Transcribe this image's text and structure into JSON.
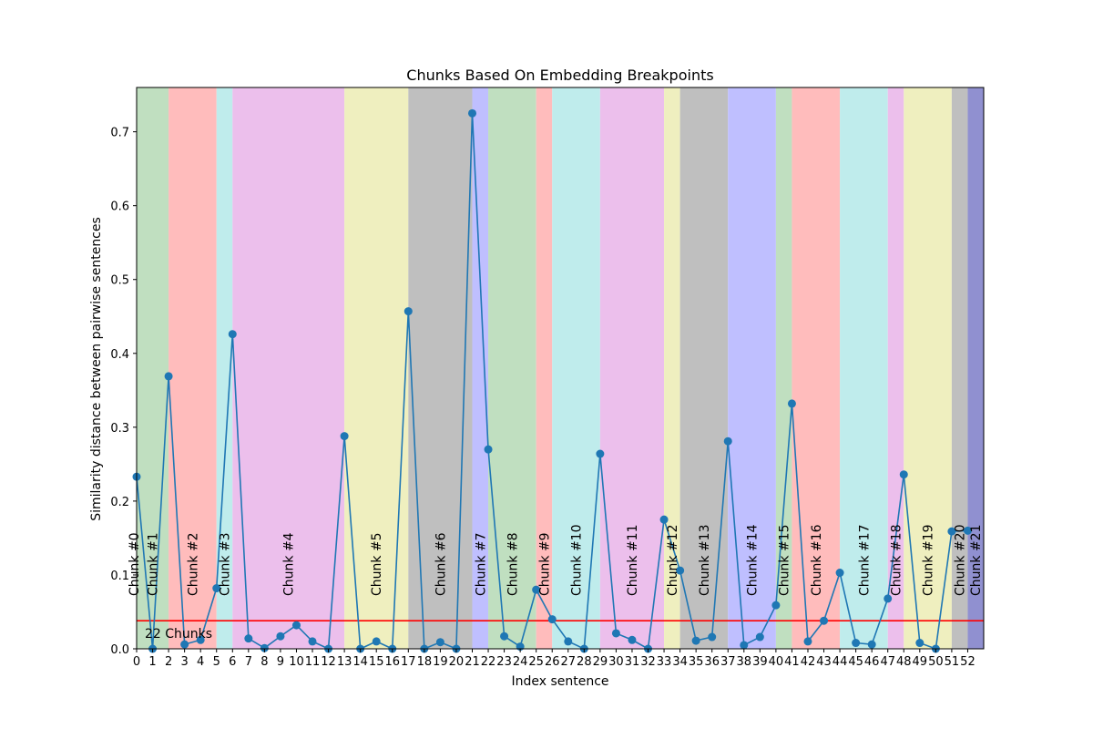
{
  "chart_data": {
    "type": "line",
    "title": "Chunks Based On Embedding Breakpoints",
    "xlabel": "Index sentence",
    "ylabel": "Similarity distance between pairwise sentences",
    "xlim": [
      0,
      53
    ],
    "ylim": [
      0,
      0.76
    ],
    "yticks": [
      0.0,
      0.1,
      0.2,
      0.3,
      0.4,
      0.5,
      0.6,
      0.7
    ],
    "grid": false,
    "x": [
      0,
      1,
      2,
      3,
      4,
      5,
      6,
      7,
      8,
      9,
      10,
      11,
      12,
      13,
      14,
      15,
      16,
      17,
      18,
      19,
      20,
      21,
      22,
      23,
      24,
      25,
      26,
      27,
      28,
      29,
      30,
      31,
      32,
      33,
      34,
      35,
      36,
      37,
      38,
      39,
      40,
      41,
      42,
      43,
      44,
      45,
      46,
      47,
      48,
      49,
      50,
      51,
      52
    ],
    "series": [
      {
        "color": "#1f77b4",
        "values": [
          0.233,
          0.0,
          0.369,
          0.006,
          0.012,
          0.082,
          0.426,
          0.014,
          0.001,
          0.017,
          0.032,
          0.01,
          0.0,
          0.288,
          0.0,
          0.01,
          0.0,
          0.457,
          0.0,
          0.009,
          0.0,
          0.725,
          0.27,
          0.017,
          0.003,
          0.08,
          0.04,
          0.01,
          0.0,
          0.264,
          0.021,
          0.012,
          0.0,
          0.175,
          0.106,
          0.011,
          0.016,
          0.281,
          0.005,
          0.016,
          0.059,
          0.332,
          0.01,
          0.038,
          0.103,
          0.008,
          0.006,
          0.068,
          0.236,
          0.008,
          0.0,
          0.159,
          0.16
        ]
      }
    ],
    "threshold": {
      "value": 0.038,
      "color": "#ff0000"
    },
    "annotation": "22 Chunks",
    "chunks": [
      {
        "label": "Chunk #0",
        "start": 0,
        "end": 2,
        "color": "#c0dfc0"
      },
      {
        "label": "Chunk #1",
        "start": 0,
        "end": 2,
        "color": "#c0dfc0"
      },
      {
        "label": "Chunk #2",
        "start": 2,
        "end": 5,
        "color": "#ffbcbc"
      },
      {
        "label": "Chunk #3",
        "start": 5,
        "end": 6,
        "color": "#bfecec"
      },
      {
        "label": "Chunk #4",
        "start": 6,
        "end": 13,
        "color": "#ecbfec"
      },
      {
        "label": "Chunk #5",
        "start": 13,
        "end": 17,
        "color": "#efefbf"
      },
      {
        "label": "Chunk #6",
        "start": 17,
        "end": 21,
        "color": "#bfbfbf"
      },
      {
        "label": "Chunk #7",
        "start": 21,
        "end": 22,
        "color": "#bfbfff"
      },
      {
        "label": "Chunk #8",
        "start": 22,
        "end": 25,
        "color": "#c0dfc0"
      },
      {
        "label": "Chunk #9",
        "start": 25,
        "end": 26,
        "color": "#ffbcbc"
      },
      {
        "label": "Chunk #10",
        "start": 26,
        "end": 29,
        "color": "#bfecec"
      },
      {
        "label": "Chunk #11",
        "start": 29,
        "end": 33,
        "color": "#ecbfec"
      },
      {
        "label": "Chunk #12",
        "start": 33,
        "end": 34,
        "color": "#efefbf"
      },
      {
        "label": "Chunk #13",
        "start": 34,
        "end": 37,
        "color": "#bfbfbf"
      },
      {
        "label": "Chunk #14",
        "start": 37,
        "end": 40,
        "color": "#bfbfff"
      },
      {
        "label": "Chunk #15",
        "start": 40,
        "end": 41,
        "color": "#c0dfc0"
      },
      {
        "label": "Chunk #16",
        "start": 41,
        "end": 44,
        "color": "#ffbcbc"
      },
      {
        "label": "Chunk #17",
        "start": 44,
        "end": 47,
        "color": "#bfecec"
      },
      {
        "label": "Chunk #18",
        "start": 47,
        "end": 48,
        "color": "#ecbfec"
      },
      {
        "label": "Chunk #19",
        "start": 48,
        "end": 51,
        "color": "#efefbf"
      },
      {
        "label": "Chunk #20",
        "start": 51,
        "end": 52,
        "color": "#bfbfbf"
      },
      {
        "label": "Chunk #21",
        "start": 52,
        "end": 53,
        "color": "#9090d0"
      }
    ]
  }
}
